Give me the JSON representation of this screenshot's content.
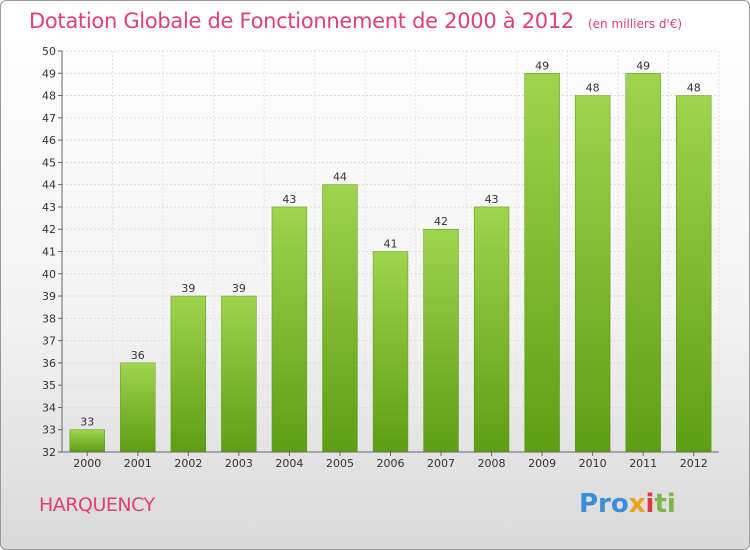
{
  "header": {
    "title": "Dotation Globale de Fonctionnement de 2000 à 2012",
    "subtitle": "(en milliers d'€)"
  },
  "footer": {
    "commune": "HARQUENCY",
    "logo": [
      "Pro",
      "x",
      "i",
      "ti"
    ]
  },
  "chart_data": {
    "type": "bar",
    "title": "Dotation Globale de Fonctionnement de 2000 à 2012",
    "subtitle": "(en milliers d'€)",
    "categories": [
      "2000",
      "2001",
      "2002",
      "2003",
      "2004",
      "2005",
      "2006",
      "2007",
      "2008",
      "2009",
      "2010",
      "2011",
      "2012"
    ],
    "values": [
      33,
      36,
      39,
      39,
      43,
      44,
      41,
      42,
      43,
      49,
      48,
      49,
      48
    ],
    "ylim": [
      32,
      50
    ],
    "yticks": [
      32,
      33,
      34,
      35,
      36,
      37,
      38,
      39,
      40,
      41,
      42,
      43,
      44,
      45,
      46,
      47,
      48,
      49,
      50
    ],
    "grid": true,
    "bar_color": "#7ab82e"
  }
}
